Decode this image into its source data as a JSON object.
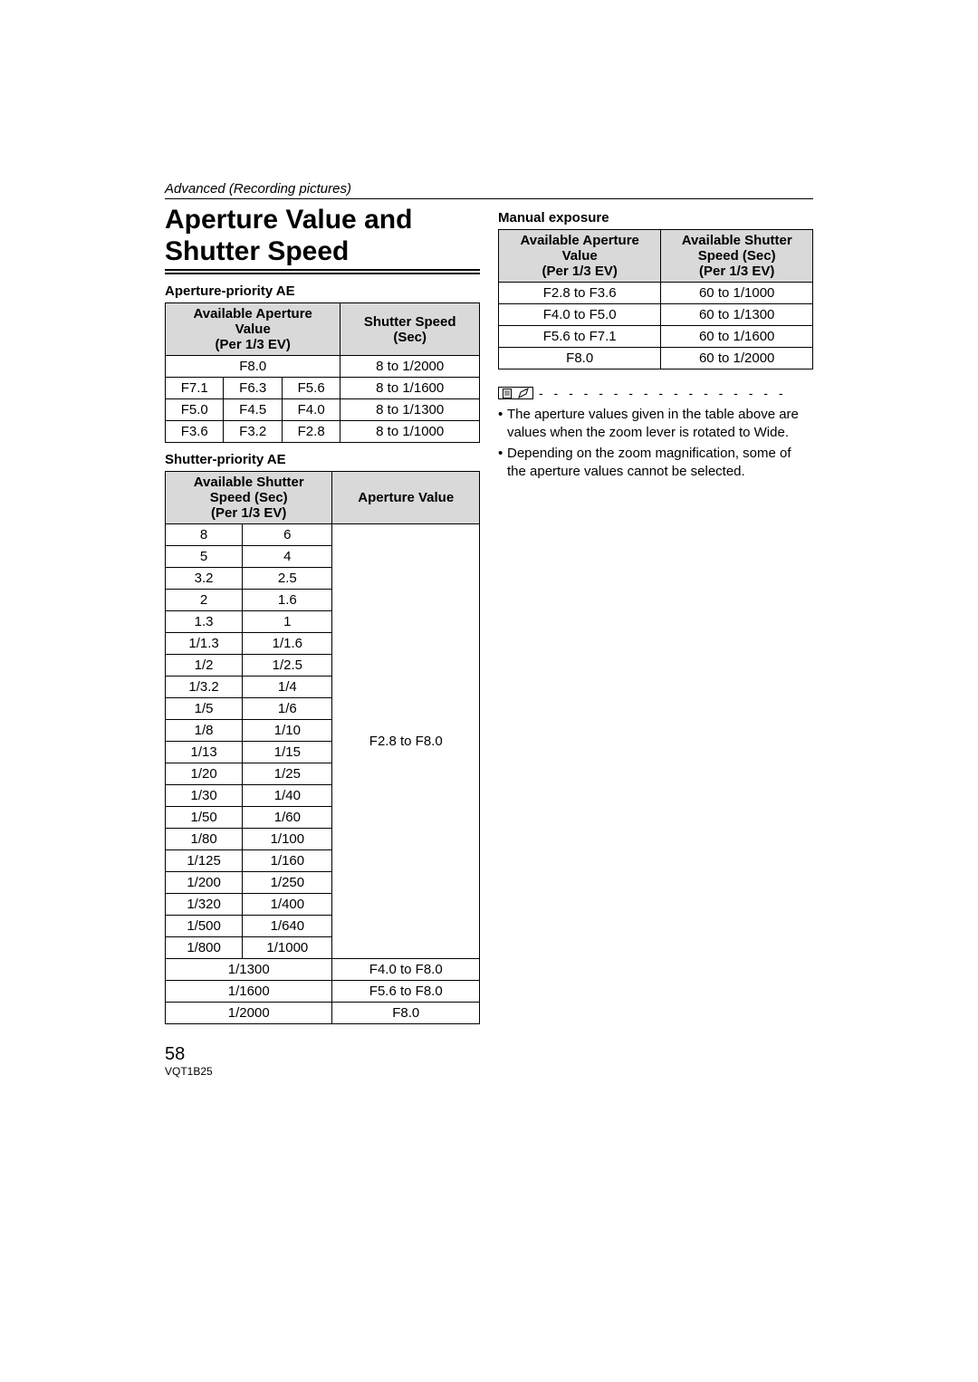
{
  "header": {
    "breadcrumb": "Advanced (Recording pictures)"
  },
  "title": "Aperture Value and Shutter Speed",
  "aperture_priority": {
    "heading": "Aperture-priority AE",
    "col_aperture": "Available Aperture Value\n(Per 1/3 EV)",
    "col_shutter": "Shutter Speed (Sec)",
    "rows": [
      {
        "a": [
          "F8.0"
        ],
        "s": "8 to 1/2000"
      },
      {
        "a": [
          "F7.1",
          "F6.3",
          "F5.6"
        ],
        "s": "8 to 1/1600"
      },
      {
        "a": [
          "F5.0",
          "F4.5",
          "F4.0"
        ],
        "s": "8 to 1/1300"
      },
      {
        "a": [
          "F3.6",
          "F3.2",
          "F2.8"
        ],
        "s": "8 to 1/1000"
      }
    ]
  },
  "shutter_priority": {
    "heading": "Shutter-priority AE",
    "col_shutter": "Available Shutter Speed (Sec)\n(Per 1/3 EV)",
    "col_aperture": "Aperture Value",
    "pair_rows": [
      [
        "8",
        "6"
      ],
      [
        "5",
        "4"
      ],
      [
        "3.2",
        "2.5"
      ],
      [
        "2",
        "1.6"
      ],
      [
        "1.3",
        "1"
      ],
      [
        "1/1.3",
        "1/1.6"
      ],
      [
        "1/2",
        "1/2.5"
      ],
      [
        "1/3.2",
        "1/4"
      ],
      [
        "1/5",
        "1/6"
      ],
      [
        "1/8",
        "1/10"
      ],
      [
        "1/13",
        "1/15"
      ],
      [
        "1/20",
        "1/25"
      ],
      [
        "1/30",
        "1/40"
      ],
      [
        "1/50",
        "1/60"
      ],
      [
        "1/80",
        "1/100"
      ],
      [
        "1/125",
        "1/160"
      ],
      [
        "1/200",
        "1/250"
      ],
      [
        "1/320",
        "1/400"
      ],
      [
        "1/500",
        "1/640"
      ],
      [
        "1/800",
        "1/1000"
      ]
    ],
    "pair_aperture": "F2.8 to F8.0",
    "single_rows": [
      {
        "s": "1/1300",
        "a": "F4.0 to F8.0"
      },
      {
        "s": "1/1600",
        "a": "F5.6 to F8.0"
      },
      {
        "s": "1/2000",
        "a": "F8.0"
      }
    ]
  },
  "manual_exposure": {
    "heading": "Manual exposure",
    "col_aperture": "Available Aperture Value\n(Per 1/3 EV)",
    "col_shutter": "Available Shutter Speed (Sec)\n(Per 1/3 EV)",
    "rows": [
      {
        "a": "F2.8 to F3.6",
        "s": "60 to 1/1000"
      },
      {
        "a": "F4.0 to F5.0",
        "s": "60 to 1/1300"
      },
      {
        "a": "F5.6 to F7.1",
        "s": "60 to 1/1600"
      },
      {
        "a": "F8.0",
        "s": "60 to 1/2000"
      }
    ]
  },
  "notes": {
    "dashes": "- - - - - - - - - - - - - - - - -",
    "items": [
      "The aperture values given in the table above are values when the zoom lever is rotated to Wide.",
      "Depending on the zoom magnification, some of the aperture values cannot be selected."
    ]
  },
  "footer": {
    "page": "58",
    "code": "VQT1B25"
  }
}
